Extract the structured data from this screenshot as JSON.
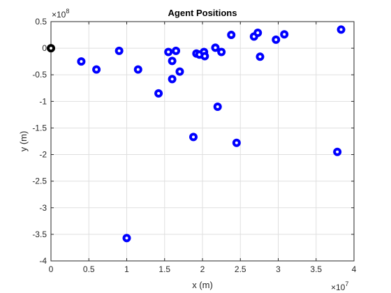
{
  "chart_data": {
    "type": "scatter",
    "title": "Agent Positions",
    "xlabel": "x (m)",
    "ylabel": "y (m)",
    "xlim": [
      0,
      40000000
    ],
    "ylim": [
      -400000000,
      50000000
    ],
    "x_ticks": [
      0,
      5000000,
      10000000,
      15000000,
      20000000,
      25000000,
      30000000,
      35000000,
      40000000
    ],
    "x_tick_labels": [
      "0",
      "0.5",
      "1",
      "1.5",
      "2",
      "2.5",
      "3",
      "3.5",
      "4"
    ],
    "y_ticks": [
      50000000,
      0,
      -50000000,
      -100000000,
      -150000000,
      -200000000,
      -250000000,
      -300000000,
      -350000000,
      -400000000
    ],
    "y_tick_labels": [
      "0.5",
      "0",
      "-0.5",
      "-1",
      "-1.5",
      "-2",
      "-2.5",
      "-3",
      "-3.5",
      "-4"
    ],
    "x_multiplier": {
      "base": "×10",
      "exp": "7"
    },
    "y_multiplier": {
      "base": "×10",
      "exp": "8"
    },
    "grid": true,
    "origin_point": {
      "x": 0,
      "y": 0,
      "color": "#000000"
    },
    "point_color": "#0000ff",
    "points": [
      {
        "x": 4000000,
        "y": -25000000
      },
      {
        "x": 6000000,
        "y": -40000000
      },
      {
        "x": 9000000,
        "y": -5000000
      },
      {
        "x": 10000000,
        "y": -357000000
      },
      {
        "x": 11500000,
        "y": -40000000
      },
      {
        "x": 14200000,
        "y": -85000000
      },
      {
        "x": 15500000,
        "y": -7000000
      },
      {
        "x": 16000000,
        "y": -24000000
      },
      {
        "x": 16000000,
        "y": -58000000
      },
      {
        "x": 16500000,
        "y": -5000000
      },
      {
        "x": 17000000,
        "y": -44000000
      },
      {
        "x": 18800000,
        "y": -167000000
      },
      {
        "x": 19200000,
        "y": -10000000
      },
      {
        "x": 19600000,
        "y": -12000000
      },
      {
        "x": 20200000,
        "y": -7000000
      },
      {
        "x": 20300000,
        "y": -15000000
      },
      {
        "x": 21700000,
        "y": 1000000
      },
      {
        "x": 22000000,
        "y": -110000000
      },
      {
        "x": 22500000,
        "y": -7000000
      },
      {
        "x": 23800000,
        "y": 25000000
      },
      {
        "x": 24500000,
        "y": -178000000
      },
      {
        "x": 26800000,
        "y": 22000000
      },
      {
        "x": 27300000,
        "y": 29000000
      },
      {
        "x": 27600000,
        "y": -16000000
      },
      {
        "x": 29700000,
        "y": 16000000
      },
      {
        "x": 30800000,
        "y": 26000000
      },
      {
        "x": 37800000,
        "y": -195000000
      },
      {
        "x": 38300000,
        "y": 35000000
      }
    ]
  }
}
